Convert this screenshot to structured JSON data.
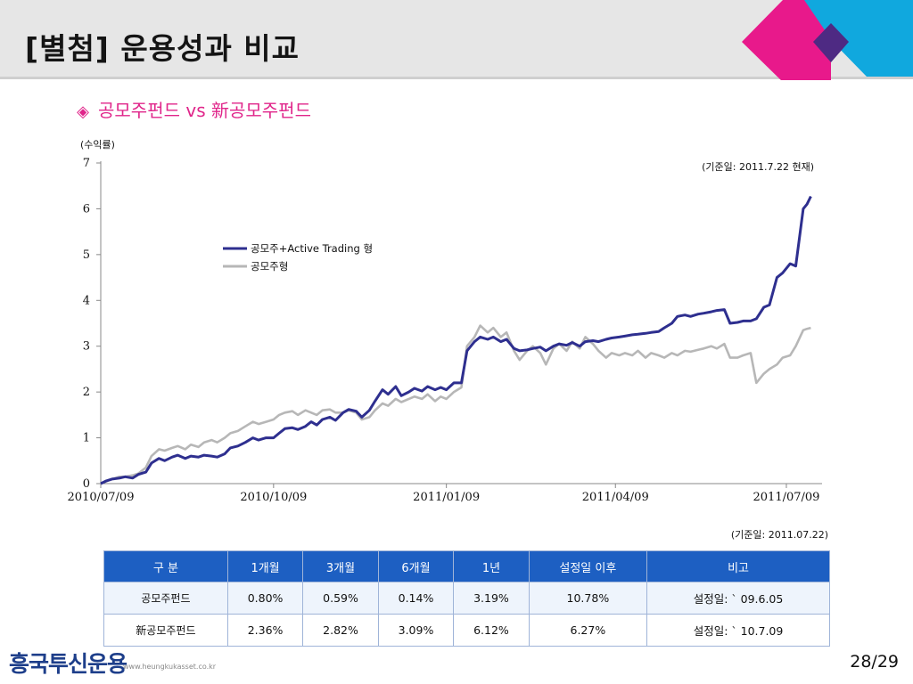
{
  "header": {
    "title": "[별첨] 운용성과 비교"
  },
  "section": {
    "title": "공모주펀드 vs 新공모주펀드",
    "bullet_icon": "diamond-icon",
    "accent": "#e0258a"
  },
  "chart_data": {
    "type": "line",
    "ylabel": "(수익률)",
    "basis_note": "(기준일:  2011.7.22  현재)",
    "ylim": [
      0,
      7
    ],
    "yticks": [
      0,
      1,
      2,
      3,
      4,
      5,
      6,
      7
    ],
    "x_range": [
      "2010-07-09",
      "2011-07-28"
    ],
    "xticks": [
      {
        "date": "2010-07-09",
        "label": "2010/07/09"
      },
      {
        "date": "2010-10-09",
        "label": "2010/10/09"
      },
      {
        "date": "2011-01-09",
        "label": "2011/01/09"
      },
      {
        "date": "2011-04-09",
        "label": "2011/04/09"
      },
      {
        "date": "2011-07-09",
        "label": "2011/07/09"
      }
    ],
    "legend_position": "upper-left",
    "series": [
      {
        "name": "공모주+Active Trading 형",
        "color": "#2e2f8f",
        "points": [
          [
            "2010-07-09",
            0.0
          ],
          [
            "2010-07-12",
            0.06
          ],
          [
            "2010-07-15",
            0.1
          ],
          [
            "2010-07-19",
            0.12
          ],
          [
            "2010-07-22",
            0.15
          ],
          [
            "2010-07-26",
            0.12
          ],
          [
            "2010-07-29",
            0.2
          ],
          [
            "2010-08-02",
            0.25
          ],
          [
            "2010-08-05",
            0.45
          ],
          [
            "2010-08-09",
            0.55
          ],
          [
            "2010-08-12",
            0.5
          ],
          [
            "2010-08-16",
            0.58
          ],
          [
            "2010-08-19",
            0.62
          ],
          [
            "2010-08-23",
            0.55
          ],
          [
            "2010-08-26",
            0.6
          ],
          [
            "2010-08-30",
            0.58
          ],
          [
            "2010-09-02",
            0.62
          ],
          [
            "2010-09-06",
            0.6
          ],
          [
            "2010-09-09",
            0.58
          ],
          [
            "2010-09-13",
            0.65
          ],
          [
            "2010-09-16",
            0.78
          ],
          [
            "2010-09-20",
            0.82
          ],
          [
            "2010-09-24",
            0.9
          ],
          [
            "2010-09-28",
            1.0
          ],
          [
            "2010-10-01",
            0.95
          ],
          [
            "2010-10-05",
            1.0
          ],
          [
            "2010-10-09",
            1.0
          ],
          [
            "2010-10-12",
            1.1
          ],
          [
            "2010-10-15",
            1.2
          ],
          [
            "2010-10-19",
            1.22
          ],
          [
            "2010-10-22",
            1.18
          ],
          [
            "2010-10-26",
            1.25
          ],
          [
            "2010-10-29",
            1.35
          ],
          [
            "2010-11-01",
            1.28
          ],
          [
            "2010-11-04",
            1.4
          ],
          [
            "2010-11-08",
            1.45
          ],
          [
            "2010-11-11",
            1.38
          ],
          [
            "2010-11-15",
            1.55
          ],
          [
            "2010-11-18",
            1.62
          ],
          [
            "2010-11-22",
            1.58
          ],
          [
            "2010-11-25",
            1.45
          ],
          [
            "2010-11-29",
            1.6
          ],
          [
            "2010-12-02",
            1.8
          ],
          [
            "2010-12-06",
            2.05
          ],
          [
            "2010-12-09",
            1.95
          ],
          [
            "2010-12-13",
            2.12
          ],
          [
            "2010-12-16",
            1.92
          ],
          [
            "2010-12-20",
            2.0
          ],
          [
            "2010-12-23",
            2.08
          ],
          [
            "2010-12-27",
            2.02
          ],
          [
            "2010-12-30",
            2.12
          ],
          [
            "2011-01-03",
            2.05
          ],
          [
            "2011-01-06",
            2.1
          ],
          [
            "2011-01-09",
            2.05
          ],
          [
            "2011-01-13",
            2.2
          ],
          [
            "2011-01-17",
            2.2
          ],
          [
            "2011-01-20",
            2.9
          ],
          [
            "2011-01-24",
            3.1
          ],
          [
            "2011-01-27",
            3.2
          ],
          [
            "2011-01-31",
            3.15
          ],
          [
            "2011-02-03",
            3.2
          ],
          [
            "2011-02-07",
            3.1
          ],
          [
            "2011-02-10",
            3.15
          ],
          [
            "2011-02-14",
            2.95
          ],
          [
            "2011-02-17",
            2.9
          ],
          [
            "2011-02-21",
            2.92
          ],
          [
            "2011-02-24",
            2.95
          ],
          [
            "2011-02-28",
            2.98
          ],
          [
            "2011-03-03",
            2.9
          ],
          [
            "2011-03-07",
            3.0
          ],
          [
            "2011-03-10",
            3.05
          ],
          [
            "2011-03-14",
            3.02
          ],
          [
            "2011-03-17",
            3.08
          ],
          [
            "2011-03-21",
            3.0
          ],
          [
            "2011-03-24",
            3.1
          ],
          [
            "2011-03-28",
            3.12
          ],
          [
            "2011-03-31",
            3.1
          ],
          [
            "2011-04-04",
            3.15
          ],
          [
            "2011-04-07",
            3.18
          ],
          [
            "2011-04-11",
            3.2
          ],
          [
            "2011-04-14",
            3.22
          ],
          [
            "2011-04-18",
            3.25
          ],
          [
            "2011-04-21",
            3.26
          ],
          [
            "2011-04-25",
            3.28
          ],
          [
            "2011-04-28",
            3.3
          ],
          [
            "2011-05-02",
            3.32
          ],
          [
            "2011-05-05",
            3.4
          ],
          [
            "2011-05-09",
            3.5
          ],
          [
            "2011-05-12",
            3.65
          ],
          [
            "2011-05-16",
            3.68
          ],
          [
            "2011-05-19",
            3.65
          ],
          [
            "2011-05-23",
            3.7
          ],
          [
            "2011-05-26",
            3.72
          ],
          [
            "2011-05-30",
            3.75
          ],
          [
            "2011-06-02",
            3.78
          ],
          [
            "2011-06-06",
            3.8
          ],
          [
            "2011-06-09",
            3.5
          ],
          [
            "2011-06-13",
            3.52
          ],
          [
            "2011-06-16",
            3.55
          ],
          [
            "2011-06-20",
            3.55
          ],
          [
            "2011-06-23",
            3.6
          ],
          [
            "2011-06-27",
            3.85
          ],
          [
            "2011-06-30",
            3.9
          ],
          [
            "2011-07-04",
            4.5
          ],
          [
            "2011-07-07",
            4.6
          ],
          [
            "2011-07-11",
            4.8
          ],
          [
            "2011-07-14",
            4.75
          ],
          [
            "2011-07-18",
            6.0
          ],
          [
            "2011-07-20",
            6.1
          ],
          [
            "2011-07-22",
            6.27
          ]
        ]
      },
      {
        "name": "공모주형",
        "color": "#b7b7b7",
        "points": [
          [
            "2010-07-09",
            0.0
          ],
          [
            "2010-07-12",
            0.05
          ],
          [
            "2010-07-15",
            0.1
          ],
          [
            "2010-07-19",
            0.15
          ],
          [
            "2010-07-22",
            0.15
          ],
          [
            "2010-07-26",
            0.18
          ],
          [
            "2010-07-29",
            0.22
          ],
          [
            "2010-08-02",
            0.35
          ],
          [
            "2010-08-05",
            0.6
          ],
          [
            "2010-08-09",
            0.75
          ],
          [
            "2010-08-12",
            0.72
          ],
          [
            "2010-08-16",
            0.78
          ],
          [
            "2010-08-19",
            0.82
          ],
          [
            "2010-08-23",
            0.75
          ],
          [
            "2010-08-26",
            0.85
          ],
          [
            "2010-08-30",
            0.8
          ],
          [
            "2010-09-02",
            0.9
          ],
          [
            "2010-09-06",
            0.95
          ],
          [
            "2010-09-09",
            0.9
          ],
          [
            "2010-09-13",
            1.0
          ],
          [
            "2010-09-16",
            1.1
          ],
          [
            "2010-09-20",
            1.15
          ],
          [
            "2010-09-24",
            1.25
          ],
          [
            "2010-09-28",
            1.35
          ],
          [
            "2010-10-01",
            1.3
          ],
          [
            "2010-10-05",
            1.35
          ],
          [
            "2010-10-09",
            1.4
          ],
          [
            "2010-10-12",
            1.5
          ],
          [
            "2010-10-15",
            1.55
          ],
          [
            "2010-10-19",
            1.58
          ],
          [
            "2010-10-22",
            1.5
          ],
          [
            "2010-10-26",
            1.6
          ],
          [
            "2010-10-29",
            1.55
          ],
          [
            "2010-11-01",
            1.5
          ],
          [
            "2010-11-04",
            1.6
          ],
          [
            "2010-11-08",
            1.62
          ],
          [
            "2010-11-11",
            1.55
          ],
          [
            "2010-11-15",
            1.55
          ],
          [
            "2010-11-18",
            1.6
          ],
          [
            "2010-11-22",
            1.55
          ],
          [
            "2010-11-25",
            1.4
          ],
          [
            "2010-11-29",
            1.45
          ],
          [
            "2010-12-02",
            1.6
          ],
          [
            "2010-12-06",
            1.75
          ],
          [
            "2010-12-09",
            1.7
          ],
          [
            "2010-12-13",
            1.85
          ],
          [
            "2010-12-16",
            1.78
          ],
          [
            "2010-12-20",
            1.85
          ],
          [
            "2010-12-23",
            1.9
          ],
          [
            "2010-12-27",
            1.85
          ],
          [
            "2010-12-30",
            1.95
          ],
          [
            "2011-01-03",
            1.8
          ],
          [
            "2011-01-06",
            1.9
          ],
          [
            "2011-01-09",
            1.85
          ],
          [
            "2011-01-13",
            2.0
          ],
          [
            "2011-01-17",
            2.1
          ],
          [
            "2011-01-20",
            3.0
          ],
          [
            "2011-01-24",
            3.2
          ],
          [
            "2011-01-27",
            3.45
          ],
          [
            "2011-01-31",
            3.3
          ],
          [
            "2011-02-03",
            3.4
          ],
          [
            "2011-02-07",
            3.2
          ],
          [
            "2011-02-10",
            3.3
          ],
          [
            "2011-02-14",
            2.9
          ],
          [
            "2011-02-17",
            2.7
          ],
          [
            "2011-02-21",
            2.9
          ],
          [
            "2011-02-24",
            3.0
          ],
          [
            "2011-02-28",
            2.85
          ],
          [
            "2011-03-03",
            2.6
          ],
          [
            "2011-03-07",
            2.95
          ],
          [
            "2011-03-10",
            3.05
          ],
          [
            "2011-03-14",
            2.9
          ],
          [
            "2011-03-17",
            3.1
          ],
          [
            "2011-03-21",
            2.95
          ],
          [
            "2011-03-24",
            3.2
          ],
          [
            "2011-03-28",
            3.05
          ],
          [
            "2011-03-31",
            2.9
          ],
          [
            "2011-04-04",
            2.75
          ],
          [
            "2011-04-07",
            2.85
          ],
          [
            "2011-04-11",
            2.8
          ],
          [
            "2011-04-14",
            2.85
          ],
          [
            "2011-04-18",
            2.8
          ],
          [
            "2011-04-21",
            2.9
          ],
          [
            "2011-04-25",
            2.75
          ],
          [
            "2011-04-28",
            2.85
          ],
          [
            "2011-05-02",
            2.8
          ],
          [
            "2011-05-05",
            2.75
          ],
          [
            "2011-05-09",
            2.85
          ],
          [
            "2011-05-12",
            2.8
          ],
          [
            "2011-05-16",
            2.9
          ],
          [
            "2011-05-19",
            2.88
          ],
          [
            "2011-05-23",
            2.92
          ],
          [
            "2011-05-26",
            2.95
          ],
          [
            "2011-05-30",
            3.0
          ],
          [
            "2011-06-02",
            2.95
          ],
          [
            "2011-06-06",
            3.05
          ],
          [
            "2011-06-09",
            2.75
          ],
          [
            "2011-06-13",
            2.75
          ],
          [
            "2011-06-16",
            2.8
          ],
          [
            "2011-06-20",
            2.85
          ],
          [
            "2011-06-23",
            2.2
          ],
          [
            "2011-06-27",
            2.4
          ],
          [
            "2011-06-30",
            2.5
          ],
          [
            "2011-07-04",
            2.6
          ],
          [
            "2011-07-07",
            2.75
          ],
          [
            "2011-07-11",
            2.8
          ],
          [
            "2011-07-14",
            3.0
          ],
          [
            "2011-07-18",
            3.35
          ],
          [
            "2011-07-20",
            3.38
          ],
          [
            "2011-07-22",
            3.4
          ]
        ]
      }
    ]
  },
  "table": {
    "basis_note": "(기준일:  2011.07.22)",
    "header_color": "#1d5fc2",
    "headers": [
      "구  분",
      "1개월",
      "3개월",
      "6개월",
      "1년",
      "설정일 이후",
      "비고"
    ],
    "rows": [
      [
        "공모주펀드",
        "0.80%",
        "0.59%",
        "0.14%",
        "3.19%",
        "10.78%",
        "설정일: ` 09.6.05"
      ],
      [
        "新공모주펀드",
        "2.36%",
        "2.82%",
        "3.09%",
        "6.12%",
        "6.27%",
        "설정일: ` 10.7.09"
      ]
    ]
  },
  "footer": {
    "logo_text": "흥국투신운용",
    "url": "www.heungkukasset.co.kr",
    "page": "28/29"
  },
  "decor": {
    "pink": "#e8198b",
    "cyan": "#10a8de",
    "purple": "#4e2a83"
  }
}
